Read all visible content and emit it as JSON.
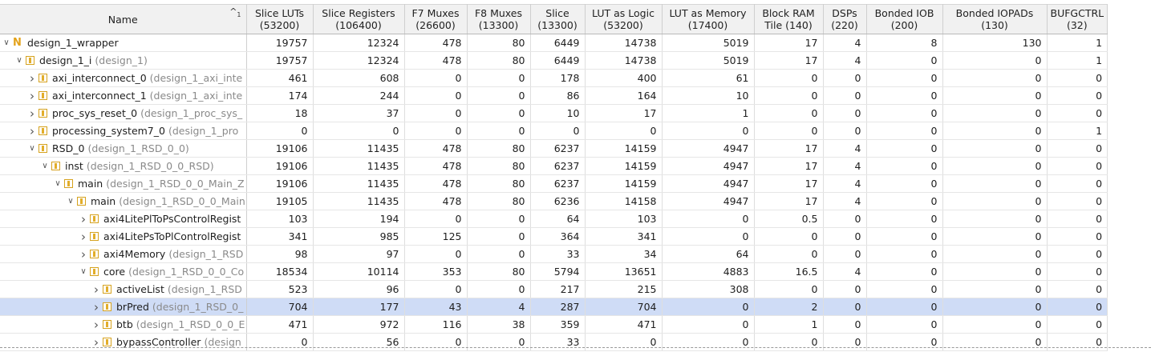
{
  "columns": [
    {
      "id": "name",
      "label": "Name"
    },
    {
      "id": "slice_luts",
      "label": "Slice LUTs",
      "sub": "(53200)"
    },
    {
      "id": "slice_registers",
      "label": "Slice Registers",
      "sub": "(106400)"
    },
    {
      "id": "f7_muxes",
      "label": "F7 Muxes",
      "sub": "(26600)"
    },
    {
      "id": "f8_muxes",
      "label": "F8 Muxes",
      "sub": "(13300)"
    },
    {
      "id": "slice",
      "label": "Slice",
      "sub": "(13300)"
    },
    {
      "id": "lut_as_logic",
      "label": "LUT as Logic",
      "sub": "(53200)"
    },
    {
      "id": "lut_as_memory",
      "label": "LUT as Memory",
      "sub": "(17400)"
    },
    {
      "id": "block_ram",
      "label": "Block RAM",
      "sub": "Tile (140)"
    },
    {
      "id": "dsps",
      "label": "DSPs",
      "sub": "(220)"
    },
    {
      "id": "bonded_iob",
      "label": "Bonded IOB",
      "sub": "(200)"
    },
    {
      "id": "bonded_iopads",
      "label": "Bonded IOPADs",
      "sub": "(130)"
    },
    {
      "id": "bufgctrl",
      "label": "BUFGCTRL",
      "sub": "(32)"
    }
  ],
  "sort": {
    "arrow": "^",
    "rank": "1"
  },
  "rows": [
    {
      "level": 0,
      "expand": "expanded",
      "icon": "top",
      "name": "design_1_wrapper",
      "module": "",
      "values": [
        "19757",
        "12324",
        "478",
        "80",
        "6449",
        "14738",
        "5019",
        "17",
        "4",
        "8",
        "130",
        "1"
      ]
    },
    {
      "level": 1,
      "expand": "expanded",
      "icon": "module",
      "name": "design_1_i",
      "module": "(design_1)",
      "values": [
        "19757",
        "12324",
        "478",
        "80",
        "6449",
        "14738",
        "5019",
        "17",
        "4",
        "0",
        "0",
        "1"
      ]
    },
    {
      "level": 2,
      "expand": "collapsed",
      "icon": "module",
      "name": "axi_interconnect_0",
      "module": "(design_1_axi_inte",
      "values": [
        "461",
        "608",
        "0",
        "0",
        "178",
        "400",
        "61",
        "0",
        "0",
        "0",
        "0",
        "0"
      ]
    },
    {
      "level": 2,
      "expand": "collapsed",
      "icon": "module",
      "name": "axi_interconnect_1",
      "module": "(design_1_axi_inte",
      "values": [
        "174",
        "244",
        "0",
        "0",
        "86",
        "164",
        "10",
        "0",
        "0",
        "0",
        "0",
        "0"
      ]
    },
    {
      "level": 2,
      "expand": "collapsed",
      "icon": "module",
      "name": "proc_sys_reset_0",
      "module": "(design_1_proc_sys_",
      "values": [
        "18",
        "37",
        "0",
        "0",
        "10",
        "17",
        "1",
        "0",
        "0",
        "0",
        "0",
        "0"
      ]
    },
    {
      "level": 2,
      "expand": "collapsed",
      "icon": "module",
      "name": "processing_system7_0",
      "module": "(design_1_pro",
      "values": [
        "0",
        "0",
        "0",
        "0",
        "0",
        "0",
        "0",
        "0",
        "0",
        "0",
        "0",
        "1"
      ]
    },
    {
      "level": 2,
      "expand": "expanded",
      "icon": "module",
      "name": "RSD_0",
      "module": "(design_1_RSD_0_0)",
      "values": [
        "19106",
        "11435",
        "478",
        "80",
        "6237",
        "14159",
        "4947",
        "17",
        "4",
        "0",
        "0",
        "0"
      ]
    },
    {
      "level": 3,
      "expand": "expanded",
      "icon": "module",
      "name": "inst",
      "module": "(design_1_RSD_0_0_RSD)",
      "values": [
        "19106",
        "11435",
        "478",
        "80",
        "6237",
        "14159",
        "4947",
        "17",
        "4",
        "0",
        "0",
        "0"
      ]
    },
    {
      "level": 4,
      "expand": "expanded",
      "icon": "module",
      "name": "main",
      "module": "(design_1_RSD_0_0_Main_Z",
      "values": [
        "19106",
        "11435",
        "478",
        "80",
        "6237",
        "14159",
        "4947",
        "17",
        "4",
        "0",
        "0",
        "0"
      ]
    },
    {
      "level": 5,
      "expand": "expanded",
      "icon": "module",
      "name": "main",
      "module": "(design_1_RSD_0_0_Main",
      "values": [
        "19105",
        "11435",
        "478",
        "80",
        "6236",
        "14158",
        "4947",
        "17",
        "4",
        "0",
        "0",
        "0"
      ]
    },
    {
      "level": 6,
      "expand": "collapsed",
      "icon": "module",
      "name": "axi4LitePlToPsControlRegist",
      "module": "",
      "values": [
        "103",
        "194",
        "0",
        "0",
        "64",
        "103",
        "0",
        "0.5",
        "0",
        "0",
        "0",
        "0"
      ]
    },
    {
      "level": 6,
      "expand": "collapsed",
      "icon": "module",
      "name": "axi4LitePsToPlControlRegist",
      "module": "",
      "values": [
        "341",
        "985",
        "125",
        "0",
        "364",
        "341",
        "0",
        "0",
        "0",
        "0",
        "0",
        "0"
      ]
    },
    {
      "level": 6,
      "expand": "collapsed",
      "icon": "module",
      "name": "axi4Memory",
      "module": "(design_1_RSD",
      "values": [
        "98",
        "97",
        "0",
        "0",
        "33",
        "34",
        "64",
        "0",
        "0",
        "0",
        "0",
        "0"
      ]
    },
    {
      "level": 6,
      "expand": "expanded",
      "icon": "module",
      "name": "core",
      "module": "(design_1_RSD_0_0_Co",
      "values": [
        "18534",
        "10114",
        "353",
        "80",
        "5794",
        "13651",
        "4883",
        "16.5",
        "4",
        "0",
        "0",
        "0"
      ]
    },
    {
      "level": 7,
      "expand": "collapsed",
      "icon": "module",
      "name": "activeList",
      "module": "(design_1_RSD",
      "values": [
        "523",
        "96",
        "0",
        "0",
        "217",
        "215",
        "308",
        "0",
        "0",
        "0",
        "0",
        "0"
      ]
    },
    {
      "level": 7,
      "expand": "collapsed",
      "icon": "module",
      "name": "brPred",
      "module": "(design_1_RSD_0_",
      "selected": true,
      "values": [
        "704",
        "177",
        "43",
        "4",
        "287",
        "704",
        "0",
        "2",
        "0",
        "0",
        "0",
        "0"
      ]
    },
    {
      "level": 7,
      "expand": "collapsed",
      "icon": "module",
      "name": "btb",
      "module": "(design_1_RSD_0_0_E",
      "values": [
        "471",
        "972",
        "116",
        "38",
        "359",
        "471",
        "0",
        "1",
        "0",
        "0",
        "0",
        "0"
      ]
    },
    {
      "level": 7,
      "expand": "collapsed",
      "icon": "module",
      "name": "bypassController",
      "module": "(design",
      "values": [
        "0",
        "56",
        "0",
        "0",
        "33",
        "0",
        "0",
        "0",
        "0",
        "0",
        "0",
        "0"
      ]
    }
  ]
}
